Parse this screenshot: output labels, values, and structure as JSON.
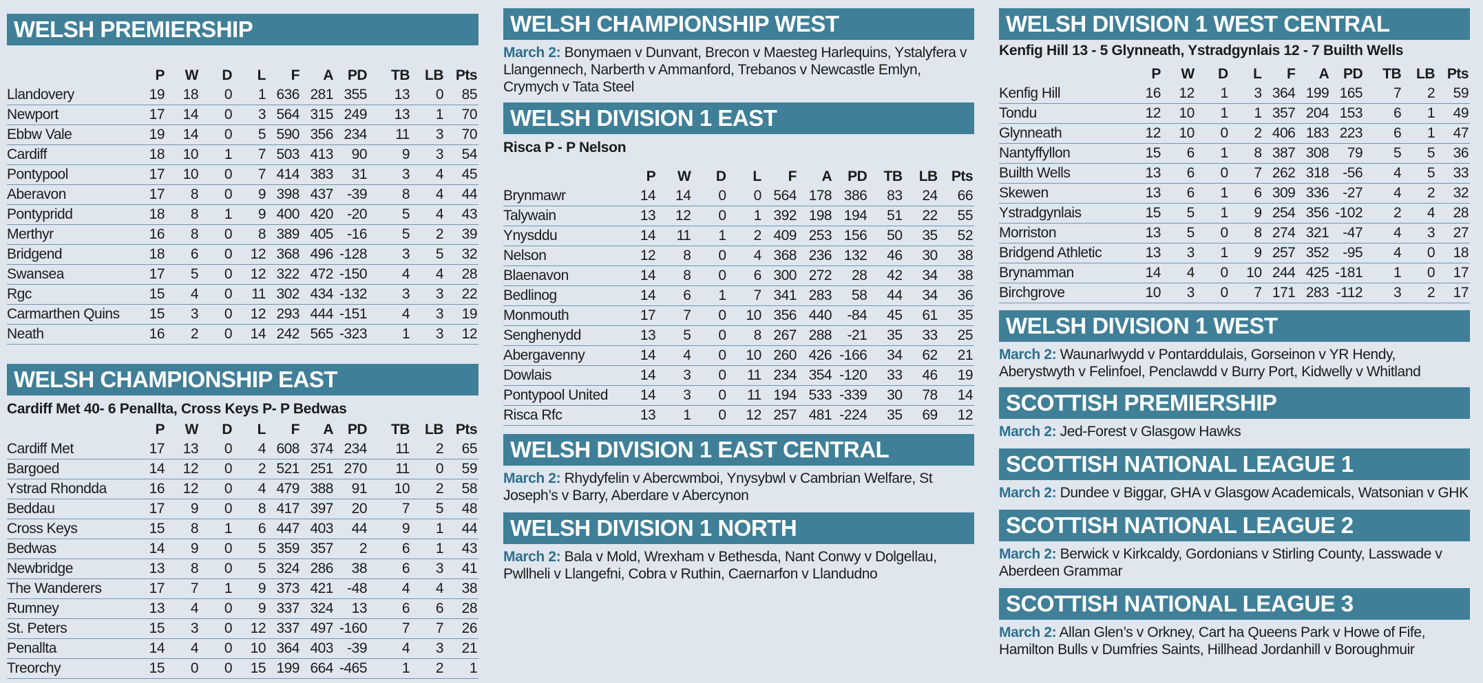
{
  "headers": [
    "P",
    "W",
    "D",
    "L",
    "F",
    "A",
    "PD",
    "TB",
    "LB",
    "Pts"
  ],
  "welsh_premiership": {
    "title": "WELSH PREMIERSHIP",
    "rows": [
      [
        "Llandovery",
        "19",
        "18",
        "0",
        "1",
        "636",
        "281",
        "355",
        "13",
        "0",
        "85"
      ],
      [
        "Newport",
        "17",
        "14",
        "0",
        "3",
        "564",
        "315",
        "249",
        "13",
        "1",
        "70"
      ],
      [
        "Ebbw Vale",
        "19",
        "14",
        "0",
        "5",
        "590",
        "356",
        "234",
        "11",
        "3",
        "70"
      ],
      [
        "Cardiff",
        "18",
        "10",
        "1",
        "7",
        "503",
        "413",
        "90",
        "9",
        "3",
        "54"
      ],
      [
        "Pontypool",
        "17",
        "10",
        "0",
        "7",
        "414",
        "383",
        "31",
        "3",
        "4",
        "45"
      ],
      [
        "Aberavon",
        "17",
        "8",
        "0",
        "9",
        "398",
        "437",
        "-39",
        "8",
        "4",
        "44"
      ],
      [
        "Pontypridd",
        "18",
        "8",
        "1",
        "9",
        "400",
        "420",
        "-20",
        "5",
        "4",
        "43"
      ],
      [
        "Merthyr",
        "16",
        "8",
        "0",
        "8",
        "389",
        "405",
        "-16",
        "5",
        "2",
        "39"
      ],
      [
        "Bridgend",
        "18",
        "6",
        "0",
        "12",
        "368",
        "496",
        "-128",
        "3",
        "5",
        "32"
      ],
      [
        "Swansea",
        "17",
        "5",
        "0",
        "12",
        "322",
        "472",
        "-150",
        "4",
        "4",
        "28"
      ],
      [
        "Rgc",
        "15",
        "4",
        "0",
        "11",
        "302",
        "434",
        "-132",
        "3",
        "3",
        "22"
      ],
      [
        "Carmarthen Quins",
        "15",
        "3",
        "0",
        "12",
        "293",
        "444",
        "-151",
        "4",
        "3",
        "19"
      ],
      [
        "Neath",
        "16",
        "2",
        "0",
        "14",
        "242",
        "565",
        "-323",
        "1",
        "3",
        "12"
      ]
    ]
  },
  "welsh_championship_east": {
    "title": "WELSH CHAMPIONSHIP EAST",
    "result": "Cardiff Met 40- 6 Penallta, Cross Keys P- P Bedwas",
    "rows": [
      [
        "Cardiff Met",
        "17",
        "13",
        "0",
        "4",
        "608",
        "374",
        "234",
        "11",
        "2",
        "65"
      ],
      [
        "Bargoed",
        "14",
        "12",
        "0",
        "2",
        "521",
        "251",
        "270",
        "11",
        "0",
        "59"
      ],
      [
        "Ystrad Rhondda",
        "16",
        "12",
        "0",
        "4",
        "479",
        "388",
        "91",
        "10",
        "2",
        "58"
      ],
      [
        "Beddau",
        "17",
        "9",
        "0",
        "8",
        "417",
        "397",
        "20",
        "7",
        "5",
        "48"
      ],
      [
        "Cross Keys",
        "15",
        "8",
        "1",
        "6",
        "447",
        "403",
        "44",
        "9",
        "1",
        "44"
      ],
      [
        "Bedwas",
        "14",
        "9",
        "0",
        "5",
        "359",
        "357",
        "2",
        "6",
        "1",
        "43"
      ],
      [
        "Newbridge",
        "13",
        "8",
        "0",
        "5",
        "324",
        "286",
        "38",
        "6",
        "3",
        "41"
      ],
      [
        "The Wanderers",
        "17",
        "7",
        "1",
        "9",
        "373",
        "421",
        "-48",
        "4",
        "4",
        "38"
      ],
      [
        "Rumney",
        "13",
        "4",
        "0",
        "9",
        "337",
        "324",
        "13",
        "6",
        "6",
        "28"
      ],
      [
        "St. Peters",
        "15",
        "3",
        "0",
        "12",
        "337",
        "497",
        "-160",
        "7",
        "7",
        "26"
      ],
      [
        "Penallta",
        "14",
        "4",
        "0",
        "10",
        "364",
        "403",
        "-39",
        "4",
        "3",
        "21"
      ],
      [
        "Treorchy",
        "15",
        "0",
        "0",
        "15",
        "199",
        "664",
        "-465",
        "1",
        "2",
        "1"
      ]
    ]
  },
  "welsh_championship_west": {
    "title": "WELSH CHAMPIONSHIP WEST",
    "when": "March 2:",
    "text": " Bonymaen v Dunvant, Brecon v Maesteg Harlequins, Ystalyfera v Llangennech, Narberth v Ammanford, Trebanos v Newcastle Emlyn, Crymych v Tata Steel"
  },
  "welsh_division_1_east": {
    "title": "WELSH DIVISION 1 EAST",
    "result": "Risca P - P Nelson",
    "rows": [
      [
        "Brynmawr",
        "14",
        "14",
        "0",
        "0",
        "564",
        "178",
        "386",
        "83",
        "24",
        "66"
      ],
      [
        "Talywain",
        "13",
        "12",
        "0",
        "1",
        "392",
        "198",
        "194",
        "51",
        "22",
        "55"
      ],
      [
        "Ynysddu",
        "14",
        "11",
        "1",
        "2",
        "409",
        "253",
        "156",
        "50",
        "35",
        "52"
      ],
      [
        "Nelson",
        "12",
        "8",
        "0",
        "4",
        "368",
        "236",
        "132",
        "46",
        "30",
        "38"
      ],
      [
        "Blaenavon",
        "14",
        "8",
        "0",
        "6",
        "300",
        "272",
        "28",
        "42",
        "34",
        "38"
      ],
      [
        "Bedlinog",
        "14",
        "6",
        "1",
        "7",
        "341",
        "283",
        "58",
        "44",
        "34",
        "36"
      ],
      [
        "Monmouth",
        "17",
        "7",
        "0",
        "10",
        "356",
        "440",
        "-84",
        "45",
        "61",
        "35"
      ],
      [
        "Senghenydd",
        "13",
        "5",
        "0",
        "8",
        "267",
        "288",
        "-21",
        "35",
        "33",
        "25"
      ],
      [
        "Abergavenny",
        "14",
        "4",
        "0",
        "10",
        "260",
        "426",
        "-166",
        "34",
        "62",
        "21"
      ],
      [
        "Dowlais",
        "14",
        "3",
        "0",
        "11",
        "234",
        "354",
        "-120",
        "33",
        "46",
        "19"
      ],
      [
        "Pontypool United",
        "14",
        "3",
        "0",
        "11",
        "194",
        "533",
        "-339",
        "30",
        "78",
        "14"
      ],
      [
        "Risca Rfc",
        "13",
        "1",
        "0",
        "12",
        "257",
        "481",
        "-224",
        "35",
        "69",
        "12"
      ]
    ]
  },
  "welsh_division_1_east_central": {
    "title": "WELSH DIVISION 1 EAST CENTRAL",
    "when": "March 2:",
    "text": " Rhydyfelin v Abercwmboi, Ynysybwl v Cambrian Welfare, St Joseph’s v Barry, Aberdare v Abercynon"
  },
  "welsh_division_1_north": {
    "title": "WELSH DIVISION 1 NORTH",
    "when": "March 2:",
    "text": " Bala v Mold, Wrexham v Bethesda, Nant Conwy v Dolgellau, Pwllheli v Llangefni, Cobra v Ruthin, Caernarfon v Llandudno"
  },
  "welsh_division_1_west_central": {
    "title": "WELSH DIVISION 1 WEST CENTRAL",
    "result": "Kenfig Hill 13 - 5 Glynneath, Ystradgynlais 12 - 7 Builth Wells",
    "rows": [
      [
        "Kenfig Hill",
        "16",
        "12",
        "1",
        "3",
        "364",
        "199",
        "165",
        "7",
        "2",
        "59"
      ],
      [
        "Tondu",
        "12",
        "10",
        "1",
        "1",
        "357",
        "204",
        "153",
        "6",
        "1",
        "49"
      ],
      [
        "Glynneath",
        "12",
        "10",
        "0",
        "2",
        "406",
        "183",
        "223",
        "6",
        "1",
        "47"
      ],
      [
        "Nantyffyllon",
        "15",
        "6",
        "1",
        "8",
        "387",
        "308",
        "79",
        "5",
        "5",
        "36"
      ],
      [
        "Builth Wells",
        "13",
        "6",
        "0",
        "7",
        "262",
        "318",
        "-56",
        "4",
        "5",
        "33"
      ],
      [
        "Skewen",
        "13",
        "6",
        "1",
        "6",
        "309",
        "336",
        "-27",
        "4",
        "2",
        "32"
      ],
      [
        "Ystradgynlais",
        "15",
        "5",
        "1",
        "9",
        "254",
        "356",
        "-102",
        "2",
        "4",
        "28"
      ],
      [
        "Morriston",
        "13",
        "5",
        "0",
        "8",
        "274",
        "321",
        "-47",
        "4",
        "3",
        "27"
      ],
      [
        "Bridgend Athletic",
        "13",
        "3",
        "1",
        "9",
        "257",
        "352",
        "-95",
        "4",
        "0",
        "18"
      ],
      [
        "Brynamman",
        "14",
        "4",
        "0",
        "10",
        "244",
        "425",
        "-181",
        "1",
        "0",
        "17"
      ],
      [
        "Birchgrove",
        "10",
        "3",
        "0",
        "7",
        "171",
        "283",
        "-112",
        "3",
        "2",
        "17"
      ]
    ]
  },
  "welsh_division_1_west": {
    "title": "WELSH DIVISION 1 WEST",
    "when": "March 2:",
    "text": " Waunarlwydd v Pontarddulais, Gorseinon v YR Hendy, Aberystwyth v Felinfoel, Penclawdd v Burry Port, Kidwelly v Whitland"
  },
  "scottish_premiership": {
    "title": "SCOTTISH PREMIERSHIP",
    "when": "March 2:",
    "text": " Jed-Forest v Glasgow Hawks"
  },
  "scottish_national_league_1": {
    "title": "SCOTTISH NATIONAL LEAGUE 1",
    "when": "March 2:",
    "text": " Dundee v Biggar, GHA v Glasgow Academicals, Watsonian v GHK"
  },
  "scottish_national_league_2": {
    "title": "SCOTTISH NATIONAL LEAGUE 2",
    "when": "March 2:",
    "text": " Berwick v Kirkcaldy, Gordonians v Stirling County, Lasswade v Aberdeen Grammar"
  },
  "scottish_national_league_3": {
    "title": "SCOTTISH NATIONAL LEAGUE 3",
    "when": "March 2:",
    "text": " Allan Glen’s v Orkney, Cart ha Queens Park v Howe of Fife, Hamilton Bulls v Dumfries Saints, Hillhead Jordanhill v Boroughmuir"
  },
  "colors": {
    "header_bg": "#3f7f98",
    "date_text": "#2f6f8e",
    "rule": "#6f97ab",
    "page_bg": "#dfe6ee"
  }
}
